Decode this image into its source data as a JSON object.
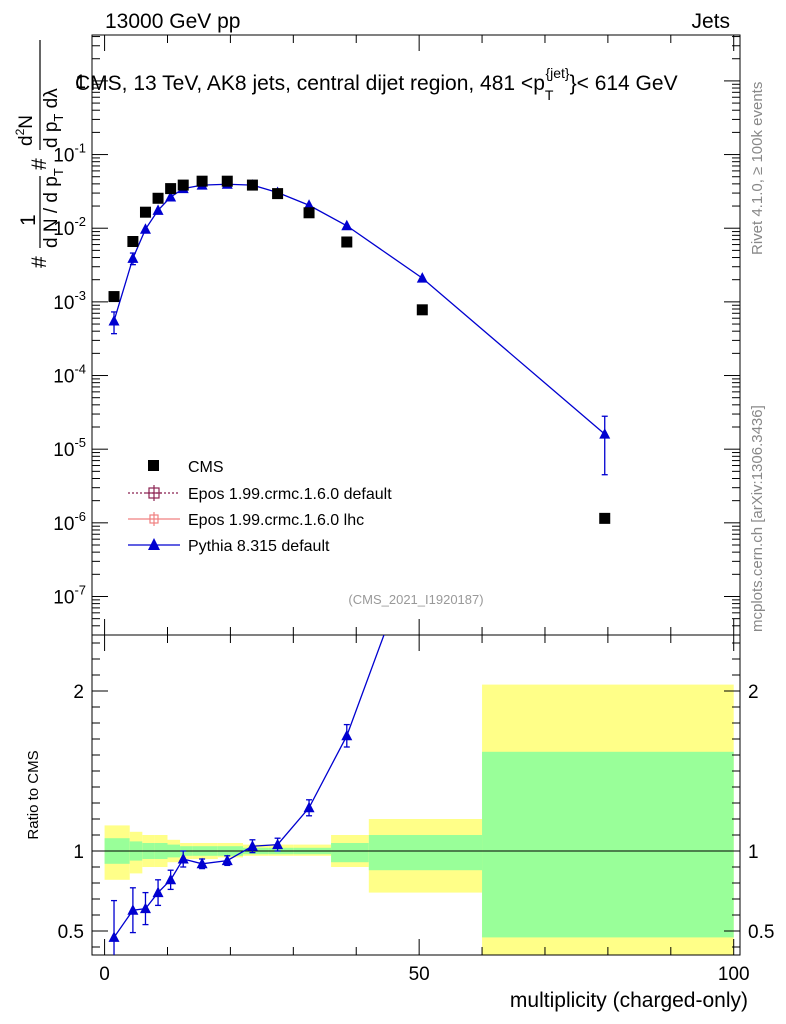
{
  "header": {
    "left": "13000 GeV pp",
    "right": "Jets"
  },
  "side_texts": {
    "rivet": "Rivet 4.1.0, ≥ 100k events",
    "mcplots": "mcplots.cern.ch [arXiv:1306.3436]"
  },
  "watermark": "(CMS_2021_I1920187)",
  "main_title": "CMS, 13 TeV, AK8 jets, central dijet region, 481 <p",
  "title_sub": "T",
  "title_sup": "{jet}",
  "title_tail": "}< 614 GeV",
  "ylabel_main": {
    "hash1": "#",
    "one": "1",
    "denom": "d N / d p",
    "denom_sub": "T",
    "hash2": "#",
    "num": "d",
    "num_sup": "2",
    "num_n": "N",
    "den2": "d p",
    "den2_sub": "T",
    "den2_tail": " dλ"
  },
  "ylabel_ratio": "Ratio to CMS",
  "xlabel": "multiplicity (charged-only)",
  "colors": {
    "cms": "#000000",
    "epos_default": "#8b2252",
    "epos_lhc": "#f08080",
    "pythia": "#0000d0",
    "band_stat": "#99ff99",
    "band_total": "#ffff88"
  },
  "chart_data": [
    {
      "type": "scatter",
      "panel": "main",
      "yscale": "log",
      "xlim": [
        -2,
        101
      ],
      "ylim": [
        3e-08,
        4.2
      ],
      "ytick_labels": [
        "10^{-7}",
        "10^{-6}",
        "10^{-5}",
        "10^{-4}",
        "10^{-3}",
        "10^{-2}",
        "10^{-1}",
        "1"
      ],
      "ytick_values": [
        1e-07,
        1e-06,
        1e-05,
        0.0001,
        0.001,
        0.01,
        0.1,
        1
      ],
      "legend": [
        "CMS",
        "Epos 1.99.crmc.1.6.0 default",
        "Epos 1.99.crmc.1.6.0 lhc",
        "Pythia 8.315 default"
      ],
      "series": [
        {
          "name": "CMS",
          "x": [
            1.5,
            4.5,
            6.5,
            8.5,
            10.5,
            12.5,
            15.5,
            19.5,
            23.5,
            27.5,
            32.5,
            38.5,
            50.5,
            79.5
          ],
          "y": [
            0.00118,
            0.0066,
            0.0165,
            0.0255,
            0.0345,
            0.0385,
            0.0435,
            0.0435,
            0.0385,
            0.0295,
            0.0162,
            0.0065,
            0.00078,
            1.15e-06
          ]
        },
        {
          "name": "Pythia 8.315 default",
          "x": [
            1.5,
            4.5,
            6.5,
            8.5,
            10.5,
            12.5,
            15.5,
            19.5,
            23.5,
            27.5,
            32.5,
            38.5,
            50.5,
            79.5
          ],
          "y": [
            0.00055,
            0.0039,
            0.0097,
            0.0175,
            0.0265,
            0.0345,
            0.0385,
            0.0395,
            0.0385,
            0.0305,
            0.0205,
            0.0108,
            0.0021,
            1.6e-05
          ],
          "yerr_low": [
            0.00018,
            0.0007,
            0.001,
            0.0012,
            0.0012,
            0.0012,
            0.0012,
            0.0012,
            0.0012,
            0.001,
            0.0008,
            0.0005,
            0.00012,
            1.15e-05
          ],
          "yerr_high": [
            0.00018,
            0.0007,
            0.001,
            0.0012,
            0.0012,
            0.0012,
            0.0012,
            0.0012,
            0.0012,
            0.001,
            0.0008,
            0.0005,
            0.00012,
            1.2e-05
          ]
        }
      ]
    },
    {
      "type": "line",
      "panel": "ratio",
      "xlim": [
        -2,
        101
      ],
      "ylim": [
        0.35,
        2.35
      ],
      "xticks": [
        0,
        50,
        100
      ],
      "yticks": [
        0.5,
        1,
        2
      ],
      "reference_line": 1,
      "bands": {
        "edges": [
          0,
          4,
          6,
          8,
          10,
          12,
          14,
          18,
          22,
          26,
          30,
          36,
          42,
          60,
          100
        ],
        "stat_low": [
          0.92,
          0.94,
          0.95,
          0.95,
          0.96,
          0.97,
          0.97,
          0.97,
          0.98,
          0.98,
          0.98,
          0.93,
          0.88,
          0.46
        ],
        "stat_high": [
          1.08,
          1.06,
          1.05,
          1.05,
          1.04,
          1.03,
          1.03,
          1.03,
          1.02,
          1.02,
          1.02,
          1.05,
          1.1,
          1.62
        ],
        "total_low": [
          0.82,
          0.86,
          0.9,
          0.9,
          0.93,
          0.95,
          0.95,
          0.96,
          0.97,
          0.97,
          0.97,
          0.9,
          0.74,
          0.3
        ],
        "total_high": [
          1.16,
          1.12,
          1.1,
          1.1,
          1.07,
          1.05,
          1.05,
          1.05,
          1.04,
          1.04,
          1.04,
          1.1,
          1.2,
          2.04
        ]
      },
      "series": [
        {
          "name": "Pythia 8.315 default",
          "x": [
            1.5,
            4.5,
            6.5,
            8.5,
            10.5,
            12.5,
            15.5,
            19.5,
            23.5,
            27.5,
            32.5,
            38.5,
            50.5
          ],
          "y": [
            0.46,
            0.63,
            0.64,
            0.74,
            0.82,
            0.95,
            0.92,
            0.94,
            1.03,
            1.04,
            1.27,
            1.72,
            3.0
          ],
          "yerr": [
            0.23,
            0.14,
            0.1,
            0.08,
            0.06,
            0.05,
            0.03,
            0.03,
            0.04,
            0.04,
            0.05,
            0.07,
            0.2
          ]
        }
      ]
    }
  ]
}
